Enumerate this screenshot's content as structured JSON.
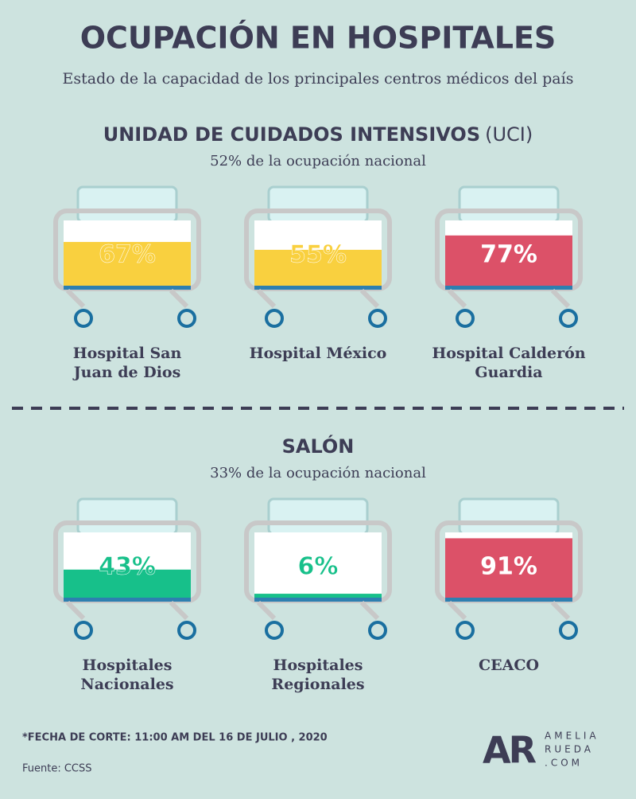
{
  "title": "OCUPACIÓN EN HOSPITALES",
  "subtitle": "Estado de la capacidad de los principales centros médicos del país",
  "sections": [
    {
      "title": "UNIDAD DE CUIDADOS INTENSIVOS",
      "title_suffix": "(UCI)",
      "subtitle": "52% de la ocupación nacional",
      "items": [
        {
          "label": [
            "Hospital San",
            "Juan de Dios"
          ],
          "value": 67,
          "value_label": "67%",
          "color": "#f9d03f"
        },
        {
          "label": [
            "Hospital México"
          ],
          "value": 55,
          "value_label": "55%",
          "color": "#f9d03f"
        },
        {
          "label": [
            "Hospital Calderón",
            "Guardia"
          ],
          "value": 77,
          "value_label": "77%",
          "color": "#dc5168"
        }
      ]
    },
    {
      "title": "SALÓN",
      "subtitle": "33% de la ocupación nacional",
      "items": [
        {
          "label": [
            "Hospitales",
            "Nacionales"
          ],
          "value": 43,
          "value_label": "43%",
          "color": "#17c08a"
        },
        {
          "label": [
            "Hospitales",
            "Regionales"
          ],
          "value": 6,
          "value_label": "6%",
          "color": "#17c08a"
        },
        {
          "label": [
            "CEACO"
          ],
          "value": 91,
          "value_label": "91%",
          "color": "#dc5168"
        }
      ]
    }
  ],
  "footer": {
    "note": "*FECHA DE CORTE:  11:00 AM DEL 16 DE JULIO , 2020",
    "source": "Fuente:  CCSS"
  },
  "logo": {
    "mark": "AR",
    "lines": [
      "AMELIA",
      "RUEDA",
      ".COM"
    ]
  }
}
